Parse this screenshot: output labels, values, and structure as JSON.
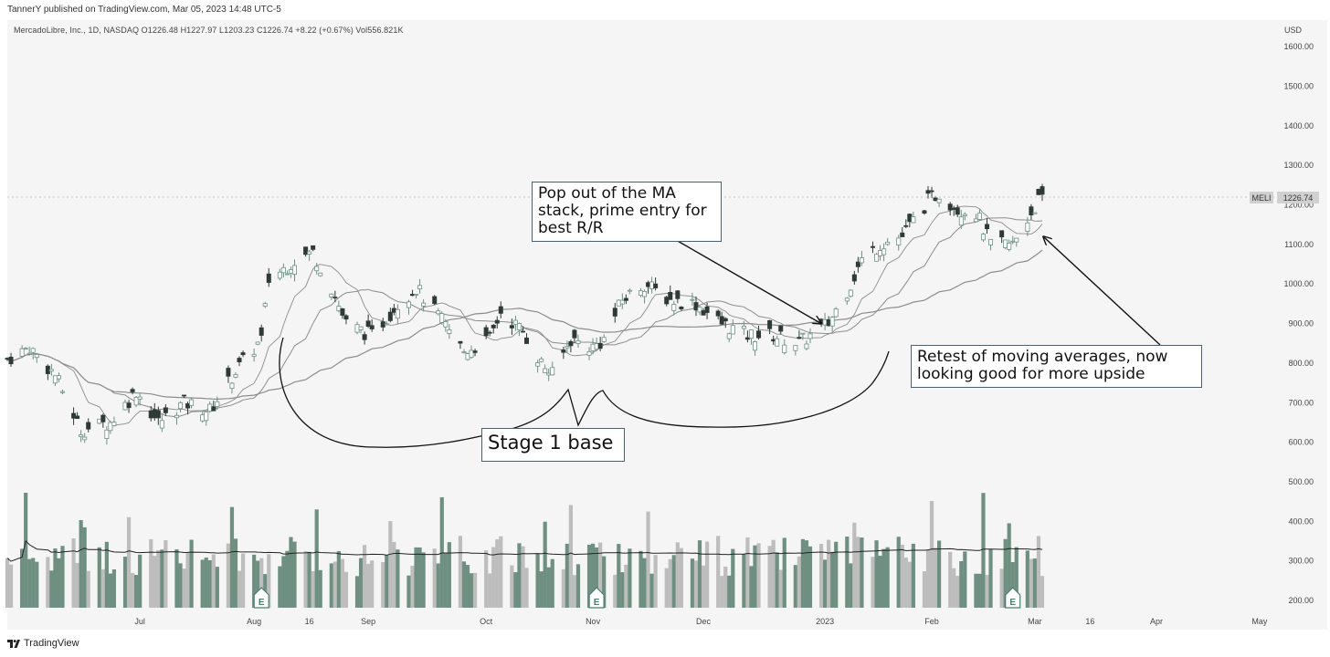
{
  "header": {
    "publisher_line": "TannerY published on TradingView.com, Mar 05, 2023 14:48 UTC-5",
    "info_line": "MercadoLibre, Inc., 1D, NASDAQ  O1226.48  H1227.97  L1203.23  C1226.74  +8.22 (+0.67%)  Vol556.821K",
    "currency": "USD"
  },
  "footer": {
    "brand": "TradingView"
  },
  "price_tag": {
    "symbol": "MELI",
    "value": "1226.74"
  },
  "annotations": {
    "pop_out_note": [
      "Pop out of the MA",
      "stack, prime entry for",
      "best R/R"
    ],
    "retest_note": [
      "Retest of moving averages, now",
      "looking good for more upside"
    ],
    "base_note": "Stage 1 base"
  },
  "earnings_marker": "E",
  "colors": {
    "up": "#6e8f82",
    "down": "#2f3a37",
    "volume_up": "#6e8f82",
    "volume_down": "#bdbdbd",
    "ma": "#8c8c8c",
    "background": "#f5f5f5"
  },
  "chart_data": {
    "type": "candlestick",
    "y_axis": {
      "ticks": [
        200,
        300,
        400,
        500,
        600,
        700,
        800,
        900,
        1000,
        1100,
        1200,
        1300,
        1400,
        1500,
        1600
      ],
      "tick_labels": [
        "200.00",
        "300.00",
        "400.00",
        "500.00",
        "600.00",
        "700.00",
        "800.00",
        "900.00",
        "1000.00",
        "1100.00",
        "1200.00",
        "1300.00",
        "1400.00",
        "1500.00",
        "1600.00"
      ],
      "range": [
        100,
        1700
      ],
      "side": "right"
    },
    "x_axis": {
      "start_date": "2022-05-26",
      "end_date": "2023-05-05",
      "tick_labels": [
        {
          "date": "2022-07-01",
          "label": "Jul"
        },
        {
          "date": "2022-08-01",
          "label": "Aug"
        },
        {
          "date": "2022-08-16",
          "label": "16"
        },
        {
          "date": "2022-09-01",
          "label": "Sep"
        },
        {
          "date": "2022-10-03",
          "label": "Oct"
        },
        {
          "date": "2022-11-01",
          "label": "Nov"
        },
        {
          "date": "2022-12-01",
          "label": "Dec"
        },
        {
          "date": "2023-01-03",
          "label": "2023"
        },
        {
          "date": "2023-02-01",
          "label": "Feb"
        },
        {
          "date": "2023-03-01",
          "label": "Mar"
        },
        {
          "date": "2023-03-16",
          "label": "16"
        },
        {
          "date": "2023-04-03",
          "label": "Apr"
        },
        {
          "date": "2023-05-01",
          "label": "May"
        }
      ]
    },
    "last_close": 1226.74,
    "close_series_approx": {
      "description": "approximate daily closes, one per trading day from start_date",
      "anchors": [
        {
          "date": "2022-05-26",
          "close": 810
        },
        {
          "date": "2022-06-01",
          "close": 840
        },
        {
          "date": "2022-06-08",
          "close": 770
        },
        {
          "date": "2022-06-15",
          "close": 630
        },
        {
          "date": "2022-06-23",
          "close": 650
        },
        {
          "date": "2022-06-30",
          "close": 730
        },
        {
          "date": "2022-07-06",
          "close": 650
        },
        {
          "date": "2022-07-13",
          "close": 700
        },
        {
          "date": "2022-07-20",
          "close": 680
        },
        {
          "date": "2022-07-27",
          "close": 780
        },
        {
          "date": "2022-08-03",
          "close": 860
        },
        {
          "date": "2022-08-05",
          "close": 1010
        },
        {
          "date": "2022-08-12",
          "close": 1060
        },
        {
          "date": "2022-08-17",
          "close": 1080
        },
        {
          "date": "2022-08-22",
          "close": 990
        },
        {
          "date": "2022-08-26",
          "close": 900
        },
        {
          "date": "2022-09-02",
          "close": 870
        },
        {
          "date": "2022-09-09",
          "close": 950
        },
        {
          "date": "2022-09-14",
          "close": 990
        },
        {
          "date": "2022-09-20",
          "close": 920
        },
        {
          "date": "2022-09-27",
          "close": 830
        },
        {
          "date": "2022-10-04",
          "close": 860
        },
        {
          "date": "2022-10-07",
          "close": 930
        },
        {
          "date": "2022-10-13",
          "close": 880
        },
        {
          "date": "2022-10-18",
          "close": 800
        },
        {
          "date": "2022-10-21",
          "close": 770
        },
        {
          "date": "2022-10-26",
          "close": 860
        },
        {
          "date": "2022-11-01",
          "close": 840
        },
        {
          "date": "2022-11-04",
          "close": 860
        },
        {
          "date": "2022-11-09",
          "close": 960
        },
        {
          "date": "2022-11-15",
          "close": 1000
        },
        {
          "date": "2022-11-22",
          "close": 960
        },
        {
          "date": "2022-11-29",
          "close": 950
        },
        {
          "date": "2022-12-06",
          "close": 900
        },
        {
          "date": "2022-12-13",
          "close": 870
        },
        {
          "date": "2022-12-20",
          "close": 870
        },
        {
          "date": "2022-12-27",
          "close": 850
        },
        {
          "date": "2023-01-04",
          "close": 900
        },
        {
          "date": "2023-01-10",
          "close": 1000
        },
        {
          "date": "2023-01-13",
          "close": 1060
        },
        {
          "date": "2023-01-18",
          "close": 1100
        },
        {
          "date": "2023-01-24",
          "close": 1120
        },
        {
          "date": "2023-01-27",
          "close": 1160
        },
        {
          "date": "2023-01-31",
          "close": 1210
        },
        {
          "date": "2023-02-03",
          "close": 1230
        },
        {
          "date": "2023-02-08",
          "close": 1190
        },
        {
          "date": "2023-02-13",
          "close": 1180
        },
        {
          "date": "2023-02-17",
          "close": 1100
        },
        {
          "date": "2023-02-23",
          "close": 1100
        },
        {
          "date": "2023-02-28",
          "close": 1180
        },
        {
          "date": "2023-03-03",
          "close": 1226.74
        }
      ]
    },
    "series": [
      {
        "type": "moving_average"
      },
      {
        "type": "moving_average"
      },
      {
        "type": "moving_average"
      },
      {
        "type": "volume"
      },
      {
        "type": "volume_moving_average"
      }
    ]
  }
}
